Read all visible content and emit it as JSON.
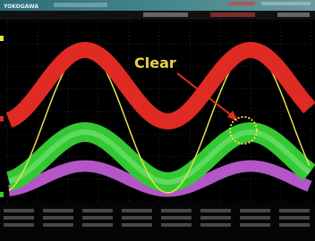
{
  "header": {
    "brand": "YOKOGAWA"
  },
  "annotation": {
    "label": "Clear"
  }
}
